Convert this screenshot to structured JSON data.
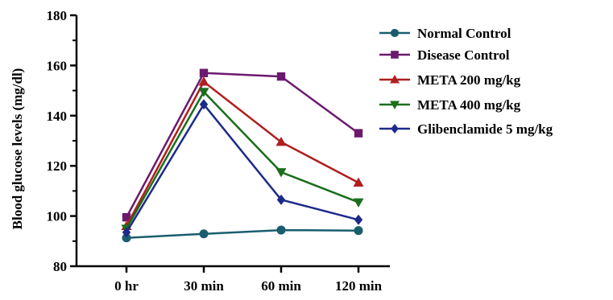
{
  "chart_data": {
    "type": "line",
    "categories": [
      "0 hr",
      "30 min",
      "60 min",
      "120 min"
    ],
    "ylabel": "Blood glucose levels (mg/dl)",
    "xlabel": "",
    "ylim": [
      80,
      180
    ],
    "yticks": [
      80,
      100,
      120,
      140,
      160,
      180
    ],
    "grid": false,
    "legend_position": "top-right",
    "series": [
      {
        "name": "Normal Control",
        "color": "#1a5e6e",
        "marker": "circle",
        "values": [
          91.3,
          92.9,
          94.4,
          94.2
        ]
      },
      {
        "name": "Disease Control",
        "color": "#6b1a6e",
        "marker": "square",
        "values": [
          99.5,
          157.0,
          155.6,
          133.0
        ]
      },
      {
        "name": "META 200 mg/kg",
        "color": "#b01e1e",
        "marker": "triangle-up",
        "values": [
          96.0,
          153.5,
          129.5,
          113.3
        ]
      },
      {
        "name": "META 400 mg/kg",
        "color": "#1c6e1c",
        "marker": "triangle-down",
        "values": [
          95.0,
          149.5,
          117.5,
          105.5
        ]
      },
      {
        "name": "Glibenclamide 5 mg/kg",
        "color": "#1c2a8a",
        "marker": "diamond",
        "values": [
          93.5,
          144.5,
          106.5,
          98.5
        ]
      }
    ]
  }
}
